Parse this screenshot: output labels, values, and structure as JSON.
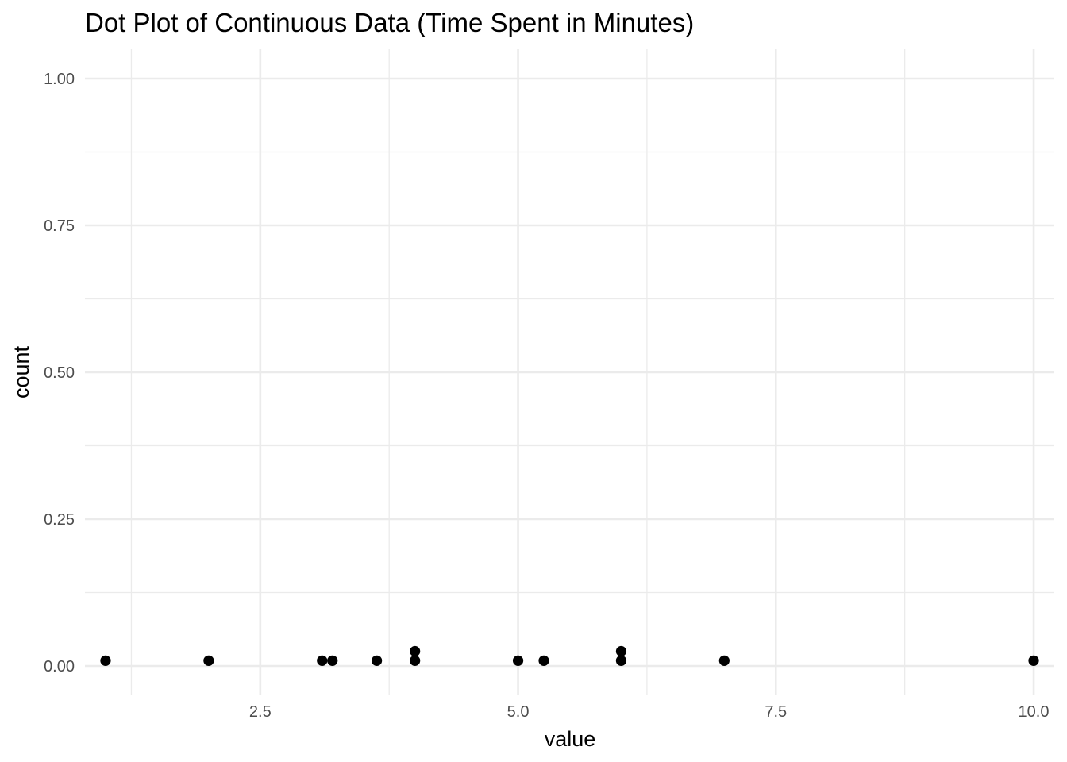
{
  "chart_data": {
    "type": "scatter",
    "title": "Dot Plot of Continuous Data (Time Spent in Minutes)",
    "xlabel": "value",
    "ylabel": "count",
    "xlim": [
      0.8,
      10.2
    ],
    "ylim": [
      -0.05,
      1.05
    ],
    "x_ticks": [
      2.5,
      5.0,
      7.5,
      10.0
    ],
    "x_tick_labels": [
      "2.5",
      "5.0",
      "7.5",
      "10.0"
    ],
    "x_minor_ticks": [
      1.25,
      3.75,
      6.25,
      8.75
    ],
    "y_ticks": [
      0.0,
      0.25,
      0.5,
      0.75,
      1.0
    ],
    "y_tick_labels": [
      "0.00",
      "0.25",
      "0.50",
      "0.75",
      "1.00"
    ],
    "y_minor_ticks": [
      0.125,
      0.375,
      0.625,
      0.875
    ],
    "grid": true,
    "legend": "none",
    "points": [
      {
        "x": 1.0,
        "y": 0.009
      },
      {
        "x": 2.0,
        "y": 0.009
      },
      {
        "x": 3.1,
        "y": 0.009
      },
      {
        "x": 3.2,
        "y": 0.009
      },
      {
        "x": 3.63,
        "y": 0.009
      },
      {
        "x": 4.0,
        "y": 0.009
      },
      {
        "x": 4.0,
        "y": 0.025
      },
      {
        "x": 5.0,
        "y": 0.009
      },
      {
        "x": 5.25,
        "y": 0.009
      },
      {
        "x": 6.0,
        "y": 0.009
      },
      {
        "x": 6.0,
        "y": 0.025
      },
      {
        "x": 7.0,
        "y": 0.009
      },
      {
        "x": 10.0,
        "y": 0.009
      }
    ],
    "colors": {
      "background": "#ffffff",
      "grid": "#ebebeb",
      "points": "#000000",
      "tick_text": "#4d4d4d"
    }
  }
}
